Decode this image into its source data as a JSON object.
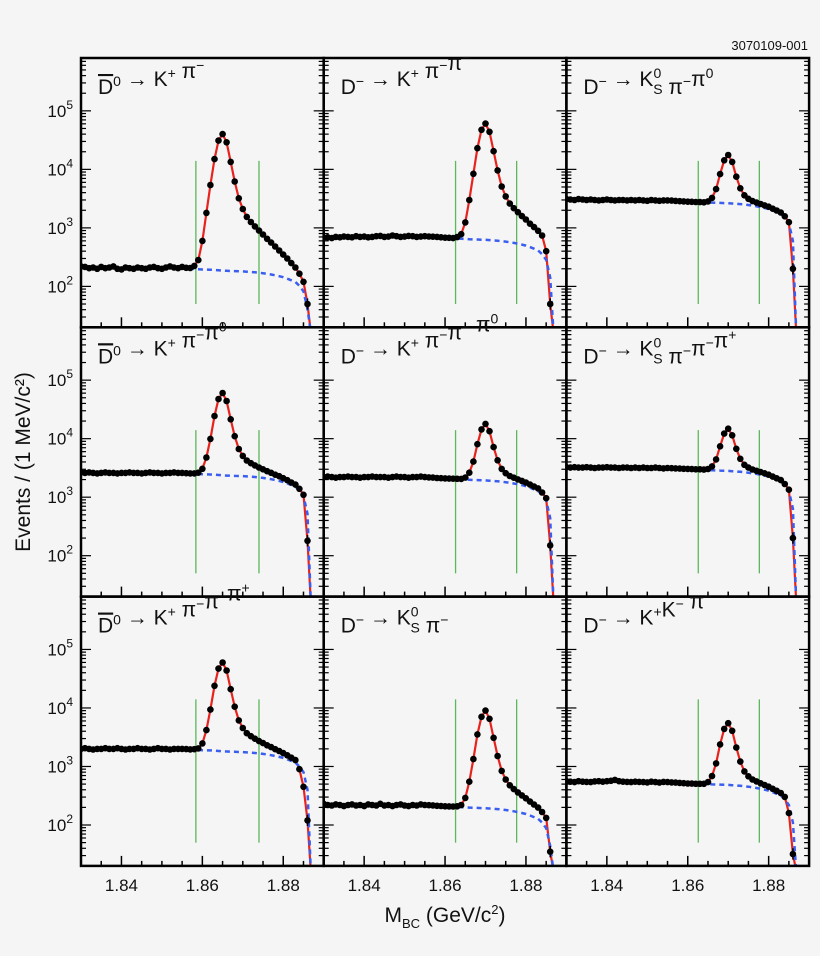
{
  "figure_id": "3070109-001",
  "chart_data": {
    "type": "scatter",
    "layout": "3x3 grid",
    "xlabel": {
      "main": "M",
      "sub": "BC",
      "rest": " (GeV/c",
      "sup": "2",
      "end": ")"
    },
    "ylabel": "Events / (1 MeV/c²)",
    "xlim": [
      1.83,
      1.89
    ],
    "ylim": [
      20,
      800000
    ],
    "y_scale": "log",
    "x_ticks": [
      "1.84",
      "1.86",
      "1.88"
    ],
    "x_tick_values": [
      1.84,
      1.86,
      1.88
    ],
    "y_ticks": [
      {
        "base": "10",
        "exp": "2",
        "value": 100
      },
      {
        "base": "10",
        "exp": "3",
        "value": 1000
      },
      {
        "base": "10",
        "exp": "4",
        "value": 10000
      },
      {
        "base": "10",
        "exp": "5",
        "value": 100000
      }
    ],
    "grid": false,
    "colors": {
      "data": "#000000",
      "fit": "#e8231e",
      "background_fit": "#3a5ff0",
      "signal_window": "#5cb85c"
    },
    "x": [
      1.83,
      1.831,
      1.832,
      1.833,
      1.834,
      1.835,
      1.836,
      1.837,
      1.838,
      1.839,
      1.84,
      1.841,
      1.842,
      1.843,
      1.844,
      1.845,
      1.846,
      1.847,
      1.848,
      1.849,
      1.85,
      1.851,
      1.852,
      1.853,
      1.854,
      1.855,
      1.856,
      1.857,
      1.858,
      1.859,
      1.86,
      1.861,
      1.862,
      1.863,
      1.864,
      1.865,
      1.866,
      1.867,
      1.868,
      1.869,
      1.87,
      1.871,
      1.872,
      1.873,
      1.874,
      1.875,
      1.876,
      1.877,
      1.878,
      1.879,
      1.88,
      1.881,
      1.882,
      1.883,
      1.884,
      1.885,
      1.886
    ],
    "background_shape": [
      1,
      1,
      1,
      1,
      1,
      1,
      1,
      1,
      1,
      1,
      1,
      1,
      1,
      1,
      1,
      1,
      1,
      1,
      1,
      1,
      1,
      1,
      1,
      1,
      1,
      1,
      0.99,
      0.98,
      0.97,
      0.96,
      0.95,
      0.945,
      0.94,
      0.93,
      0.92,
      0.91,
      0.9,
      0.895,
      0.89,
      0.885,
      0.88,
      0.87,
      0.86,
      0.85,
      0.835,
      0.82,
      0.8,
      0.78,
      0.755,
      0.73,
      0.7,
      0.66,
      0.62,
      0.58,
      0.5,
      0.4,
      0.2
    ],
    "signal_window_y": [
      50,
      14000
    ],
    "panels": [
      {
        "label": [
          {
            "t": "D",
            "bar": true
          },
          {
            "t": "0",
            "sup": true
          },
          {
            "t": " → K"
          },
          {
            "t": "+",
            "sup": true
          },
          {
            "t": " π"
          },
          {
            "t": "−",
            "sup": true
          }
        ],
        "signal_window": [
          1.8584,
          1.874
        ],
        "background_level": 205,
        "y": [
          220,
          215,
          205,
          210,
          200,
          215,
          205,
          210,
          220,
          200,
          195,
          210,
          205,
          200,
          210,
          205,
          200,
          210,
          215,
          205,
          200,
          210,
          220,
          210,
          205,
          215,
          208,
          206,
          224,
          282,
          600,
          1800,
          5400,
          15000,
          31000,
          40000,
          29000,
          13400,
          6200,
          3200,
          2100,
          1540,
          1260,
          1060,
          900,
          770,
          650,
          560,
          480,
          410,
          350,
          300,
          250,
          210,
          165,
          120,
          50
        ]
      },
      {
        "label": [
          {
            "t": "D"
          },
          {
            "t": "−",
            "sup": true
          },
          {
            "t": " → K"
          },
          {
            "t": "+",
            "sup": true
          },
          {
            "t": " π"
          },
          {
            "t": "−",
            "sup": true
          },
          {
            "t": "π"
          },
          {
            "t": "−",
            "sup": true
          }
        ],
        "signal_window": [
          1.8626,
          1.8777
        ],
        "background_level": 710,
        "y": [
          680,
          690,
          670,
          700,
          690,
          710,
          700,
          690,
          720,
          700,
          710,
          690,
          700,
          720,
          730,
          700,
          710,
          740,
          720,
          700,
          710,
          730,
          720,
          700,
          710,
          720,
          713,
          706,
          700,
          690,
          680,
          676,
          670,
          695,
          780,
          1240,
          3000,
          8400,
          23000,
          47400,
          60600,
          43800,
          20400,
          9600,
          5100,
          3450,
          2600,
          2170,
          1850,
          1590,
          1390,
          1180,
          1030,
          890,
          740,
          400,
          50
        ]
      },
      {
        "label": [
          {
            "t": "D"
          },
          {
            "t": "−",
            "sup": true
          },
          {
            "t": " → K"
          },
          {
            "t": "0",
            "sup": true,
            "sub": "S"
          },
          {
            "t": " π"
          },
          {
            "t": "−",
            "sup": true
          },
          {
            "t": "π"
          },
          {
            "t": "0",
            "sup": true
          }
        ],
        "signal_window": [
          1.8626,
          1.8777
        ],
        "background_level": 3000,
        "y": [
          3100,
          3050,
          3000,
          3100,
          3050,
          3000,
          3050,
          3000,
          2950,
          3000,
          3050,
          3000,
          2950,
          3000,
          3000,
          2950,
          3000,
          2950,
          3000,
          2950,
          2900,
          3000,
          2950,
          2900,
          2950,
          2950,
          2920,
          2890,
          2860,
          2830,
          2800,
          2790,
          2770,
          2760,
          2740,
          2830,
          3250,
          4600,
          8300,
          14300,
          17600,
          13400,
          7500,
          4750,
          3600,
          3140,
          2870,
          2700,
          2560,
          2420,
          2300,
          2130,
          1980,
          1830,
          1580,
          1250,
          200
        ]
      },
      {
        "label": [
          {
            "t": "D",
            "bar": true
          },
          {
            "t": "0",
            "sup": true
          },
          {
            "t": " → K"
          },
          {
            "t": "+",
            "sup": true
          },
          {
            "t": " π"
          },
          {
            "t": "−",
            "sup": true
          },
          {
            "t": "π"
          },
          {
            "t": "0",
            "sup": true
          }
        ],
        "signal_window": [
          1.8584,
          1.874
        ],
        "background_level": 2600,
        "y": [
          2650,
          2600,
          2650,
          2600,
          2550,
          2600,
          2650,
          2600,
          2600,
          2550,
          2600,
          2600,
          2650,
          2600,
          2600,
          2550,
          2600,
          2650,
          2600,
          2600,
          2550,
          2600,
          2600,
          2650,
          2600,
          2600,
          2570,
          2550,
          2550,
          2620,
          3050,
          4760,
          9900,
          24400,
          47600,
          60400,
          44100,
          21400,
          11000,
          6650,
          5070,
          4230,
          3810,
          3490,
          3210,
          3000,
          2780,
          2610,
          2420,
          2280,
          2110,
          1950,
          1780,
          1640,
          1390,
          1100,
          180
        ]
      },
      {
        "label": [
          {
            "t": "D"
          },
          {
            "t": "−",
            "sup": true
          },
          {
            "t": " → K"
          },
          {
            "t": "+",
            "sup": true
          },
          {
            "t": " π"
          },
          {
            "t": "−",
            "sup": true
          },
          {
            "t": "π"
          },
          {
            "t": "−",
            "sup": true
          },
          {
            "t": " π"
          },
          {
            "t": "0",
            "sup": true
          }
        ],
        "signal_window": [
          1.8626,
          1.8777
        ],
        "background_level": 2200,
        "y": [
          2200,
          2250,
          2200,
          2150,
          2200,
          2200,
          2250,
          2200,
          2200,
          2150,
          2200,
          2200,
          2250,
          2200,
          2200,
          2200,
          2150,
          2200,
          2250,
          2200,
          2200,
          2150,
          2200,
          2200,
          2250,
          2200,
          2180,
          2160,
          2130,
          2110,
          2090,
          2080,
          2070,
          2060,
          2050,
          2160,
          2620,
          4050,
          8040,
          14400,
          17900,
          13400,
          7170,
          4270,
          3040,
          2570,
          2300,
          2150,
          2010,
          1900,
          1780,
          1640,
          1520,
          1410,
          1200,
          960,
          150
        ]
      },
      {
        "label": [
          {
            "t": "D"
          },
          {
            "t": "−",
            "sup": true
          },
          {
            "t": " → K"
          },
          {
            "t": "0",
            "sup": true,
            "sub": "S"
          },
          {
            "t": " π"
          },
          {
            "t": "−",
            "sup": true
          },
          {
            "t": "π"
          },
          {
            "t": "−",
            "sup": true
          },
          {
            "t": "π"
          },
          {
            "t": "+",
            "sup": true
          }
        ],
        "signal_window": [
          1.8626,
          1.8777
        ],
        "background_level": 3200,
        "y": [
          3250,
          3200,
          3250,
          3200,
          3200,
          3250,
          3200,
          3150,
          3200,
          3200,
          3250,
          3200,
          3200,
          3150,
          3200,
          3200,
          3150,
          3200,
          3150,
          3200,
          3150,
          3150,
          3200,
          3150,
          3100,
          3150,
          3130,
          3100,
          3080,
          3060,
          3040,
          3020,
          3000,
          2990,
          2960,
          3030,
          3360,
          4420,
          7410,
          12200,
          14800,
          11400,
          6710,
          4520,
          3570,
          3200,
          2970,
          2820,
          2680,
          2560,
          2420,
          2250,
          2100,
          1960,
          1680,
          1340,
          200
        ]
      },
      {
        "label": [
          {
            "t": "D",
            "bar": true
          },
          {
            "t": "0",
            "sup": true
          },
          {
            "t": " → K"
          },
          {
            "t": "+",
            "sup": true
          },
          {
            "t": " π"
          },
          {
            "t": "−",
            "sup": true
          },
          {
            "t": "π"
          },
          {
            "t": "−",
            "sup": true
          },
          {
            "t": "π"
          },
          {
            "t": "+",
            "sup": true
          }
        ],
        "signal_window": [
          1.8584,
          1.874
        ],
        "background_level": 2000,
        "y": [
          2000,
          2050,
          2000,
          1950,
          2000,
          2000,
          2050,
          2000,
          2000,
          2050,
          2000,
          1950,
          2000,
          2000,
          2050,
          2000,
          2000,
          1950,
          2000,
          2050,
          2000,
          2000,
          1950,
          2000,
          2000,
          2000,
          1980,
          1960,
          1970,
          2040,
          2480,
          4190,
          9380,
          23900,
          47000,
          59800,
          43600,
          20900,
          10500,
          6120,
          4540,
          3710,
          3290,
          2980,
          2710,
          2510,
          2300,
          2140,
          1970,
          1840,
          1690,
          1550,
          1410,
          1290,
          900,
          450,
          120
        ]
      },
      {
        "label": [
          {
            "t": "D"
          },
          {
            "t": "−",
            "sup": true
          },
          {
            "t": " → K"
          },
          {
            "t": "0",
            "sup": true,
            "sub": "S"
          },
          {
            "t": " π"
          },
          {
            "t": "−",
            "sup": true
          }
        ],
        "signal_window": [
          1.8626,
          1.8777
        ],
        "background_level": 220,
        "y": [
          230,
          220,
          215,
          225,
          220,
          210,
          220,
          225,
          215,
          220,
          210,
          225,
          220,
          215,
          230,
          215,
          220,
          210,
          220,
          225,
          215,
          210,
          220,
          215,
          225,
          220,
          218,
          216,
          213,
          211,
          209,
          208,
          207,
          209,
          220,
          290,
          550,
          1340,
          3540,
          7060,
          9000,
          6530,
          3090,
          1510,
          840,
          600,
          476,
          410,
          360,
          320,
          286,
          251,
          224,
          198,
          167,
          132,
          35
        ]
      },
      {
        "label": [
          {
            "t": "D"
          },
          {
            "t": "−",
            "sup": true
          },
          {
            "t": " → K"
          },
          {
            "t": "+",
            "sup": true
          },
          {
            "t": "K"
          },
          {
            "t": "−",
            "sup": true
          },
          {
            "t": " π"
          },
          {
            "t": "−",
            "sup": true
          }
        ],
        "signal_window": [
          1.8626,
          1.8777
        ],
        "background_level": 550,
        "y": [
          560,
          550,
          540,
          560,
          550,
          545,
          540,
          555,
          560,
          550,
          560,
          570,
          590,
          560,
          550,
          545,
          540,
          550,
          545,
          540,
          535,
          550,
          540,
          530,
          545,
          540,
          535,
          530,
          524,
          518,
          512,
          510,
          506,
          505,
          505,
          540,
          684,
          1130,
          2380,
          4380,
          5480,
          4070,
          2110,
          1210,
          825,
          680,
          600,
          555,
          515,
          483,
          451,
          415,
          384,
          352,
          302,
          160,
          32
        ]
      }
    ]
  }
}
